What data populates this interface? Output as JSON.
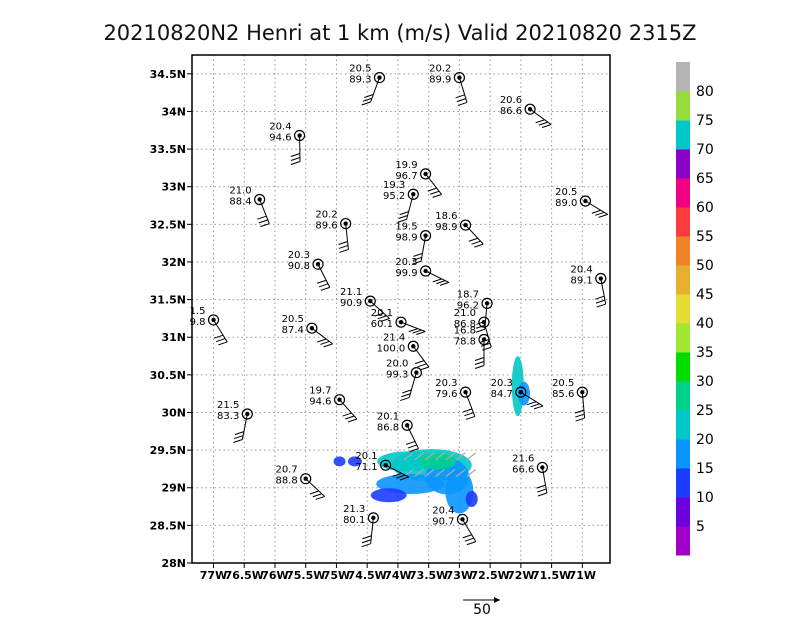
{
  "chart_data": {
    "type": "scatter",
    "title": "20210820N2 Henri at 1 km (m/s) Valid 20210820 2315Z",
    "xlim": [
      -77.35,
      -70.55
    ],
    "ylim": [
      28,
      34.75
    ],
    "x_ticks": [
      {
        "v": -77,
        "label": "77W"
      },
      {
        "v": -76.5,
        "label": "76.5W"
      },
      {
        "v": -76,
        "label": "76W"
      },
      {
        "v": -75.5,
        "label": "75.5W"
      },
      {
        "v": -75,
        "label": "75W"
      },
      {
        "v": -74.5,
        "label": "74.5W"
      },
      {
        "v": -74,
        "label": "74W"
      },
      {
        "v": -73.5,
        "label": "73.5W"
      },
      {
        "v": -73,
        "label": "73W"
      },
      {
        "v": -72.5,
        "label": "72.5W"
      },
      {
        "v": -72,
        "label": "72W"
      },
      {
        "v": -71.5,
        "label": "71.5W"
      },
      {
        "v": -71,
        "label": "71W"
      }
    ],
    "y_ticks": [
      {
        "v": 28,
        "label": "28N"
      },
      {
        "v": 28.5,
        "label": "28.5N"
      },
      {
        "v": 29,
        "label": "29N"
      },
      {
        "v": 29.5,
        "label": "29.5N"
      },
      {
        "v": 30,
        "label": "30N"
      },
      {
        "v": 30.5,
        "label": "30.5N"
      },
      {
        "v": 31,
        "label": "31N"
      },
      {
        "v": 31.5,
        "label": "31.5N"
      },
      {
        "v": 32,
        "label": "32N"
      },
      {
        "v": 32.5,
        "label": "32.5N"
      },
      {
        "v": 33,
        "label": "33N"
      },
      {
        "v": 33.5,
        "label": "33.5N"
      },
      {
        "v": 34,
        "label": "34N"
      },
      {
        "v": 34.5,
        "label": "34.5N"
      }
    ],
    "grid": true,
    "observations": [
      {
        "lon": -74.3,
        "lat": 34.45,
        "t": "20.5",
        "p": "89.3"
      },
      {
        "lon": -73.0,
        "lat": 34.45,
        "t": "20.2",
        "p": "89.9"
      },
      {
        "lon": -71.85,
        "lat": 34.03,
        "t": "20.6",
        "p": "86.6"
      },
      {
        "lon": -75.6,
        "lat": 33.68,
        "t": "20.4",
        "p": "94.6"
      },
      {
        "lon": -73.55,
        "lat": 33.17,
        "t": "19.9",
        "p": "96.7"
      },
      {
        "lon": -73.75,
        "lat": 32.9,
        "t": "19.3",
        "p": "95.2"
      },
      {
        "lon": -76.25,
        "lat": 32.83,
        "t": "21.0",
        "p": "88.4"
      },
      {
        "lon": -70.95,
        "lat": 32.81,
        "t": "20.5",
        "p": "89.0"
      },
      {
        "lon": -74.85,
        "lat": 32.51,
        "t": "20.2",
        "p": "89.6"
      },
      {
        "lon": -72.9,
        "lat": 32.49,
        "t": "18.6",
        "p": "98.9"
      },
      {
        "lon": -73.55,
        "lat": 32.35,
        "t": "19.5",
        "p": "98.9"
      },
      {
        "lon": -75.3,
        "lat": 31.97,
        "t": "20.3",
        "p": "90.8"
      },
      {
        "lon": -73.55,
        "lat": 31.88,
        "t": "20.3",
        "p": "99.9"
      },
      {
        "lon": -70.7,
        "lat": 31.78,
        "t": "20.4",
        "p": "89.1"
      },
      {
        "lon": -74.45,
        "lat": 31.48,
        "t": "21.1",
        "p": "90.9"
      },
      {
        "lon": -72.55,
        "lat": 31.45,
        "t": "18.7",
        "p": "96.2"
      },
      {
        "lon": -77.0,
        "lat": 31.23,
        "t": "1.5",
        "p": "9.8"
      },
      {
        "lon": -73.95,
        "lat": 31.2,
        "t": "20.1",
        "p": "60.1"
      },
      {
        "lon": -72.6,
        "lat": 31.2,
        "t": "21.0",
        "p": "86.8"
      },
      {
        "lon": -75.4,
        "lat": 31.12,
        "t": "20.5",
        "p": "87.4"
      },
      {
        "lon": -72.6,
        "lat": 30.97,
        "t": "16.8",
        "p": "78.8"
      },
      {
        "lon": -73.75,
        "lat": 30.88,
        "t": "21.4",
        "p": "100.0"
      },
      {
        "lon": -73.7,
        "lat": 30.53,
        "t": "20.0",
        "p": "99.3"
      },
      {
        "lon": -72.9,
        "lat": 30.27,
        "t": "20.3",
        "p": "79.6"
      },
      {
        "lon": -72.0,
        "lat": 30.27,
        "t": "20.3",
        "p": "84.7"
      },
      {
        "lon": -71.0,
        "lat": 30.27,
        "t": "20.5",
        "p": "85.6"
      },
      {
        "lon": -74.95,
        "lat": 30.17,
        "t": "19.7",
        "p": "94.6"
      },
      {
        "lon": -76.45,
        "lat": 29.98,
        "t": "21.5",
        "p": "83.3"
      },
      {
        "lon": -73.85,
        "lat": 29.83,
        "t": "20.1",
        "p": "86.8"
      },
      {
        "lon": -74.2,
        "lat": 29.3,
        "t": "20.1",
        "p": "71.1"
      },
      {
        "lon": -71.65,
        "lat": 29.27,
        "t": "21.6",
        "p": "66.6"
      },
      {
        "lon": -75.5,
        "lat": 29.12,
        "t": "20.7",
        "p": "88.8"
      },
      {
        "lon": -74.4,
        "lat": 28.6,
        "t": "21.3",
        "p": "80.1"
      },
      {
        "lon": -72.95,
        "lat": 28.58,
        "t": "20.4",
        "p": "90.7"
      }
    ],
    "colorbar": {
      "labels": [
        "5",
        "10",
        "15",
        "20",
        "25",
        "30",
        "35",
        "40",
        "45",
        "50",
        "55",
        "60",
        "65",
        "70",
        "75",
        "80"
      ],
      "colors": [
        "#a000c8",
        "#6e00dc",
        "#1e3cff",
        "#0a96ff",
        "#00c8c8",
        "#00d28c",
        "#00dc00",
        "#a0e632",
        "#e6dc32",
        "#e6af2d",
        "#f08228",
        "#fa3c3c",
        "#f00082",
        "#8c00c8",
        "#00c8c8",
        "#96dc3c",
        "#b4b4b4"
      ]
    },
    "reference_vector_label": "50"
  }
}
